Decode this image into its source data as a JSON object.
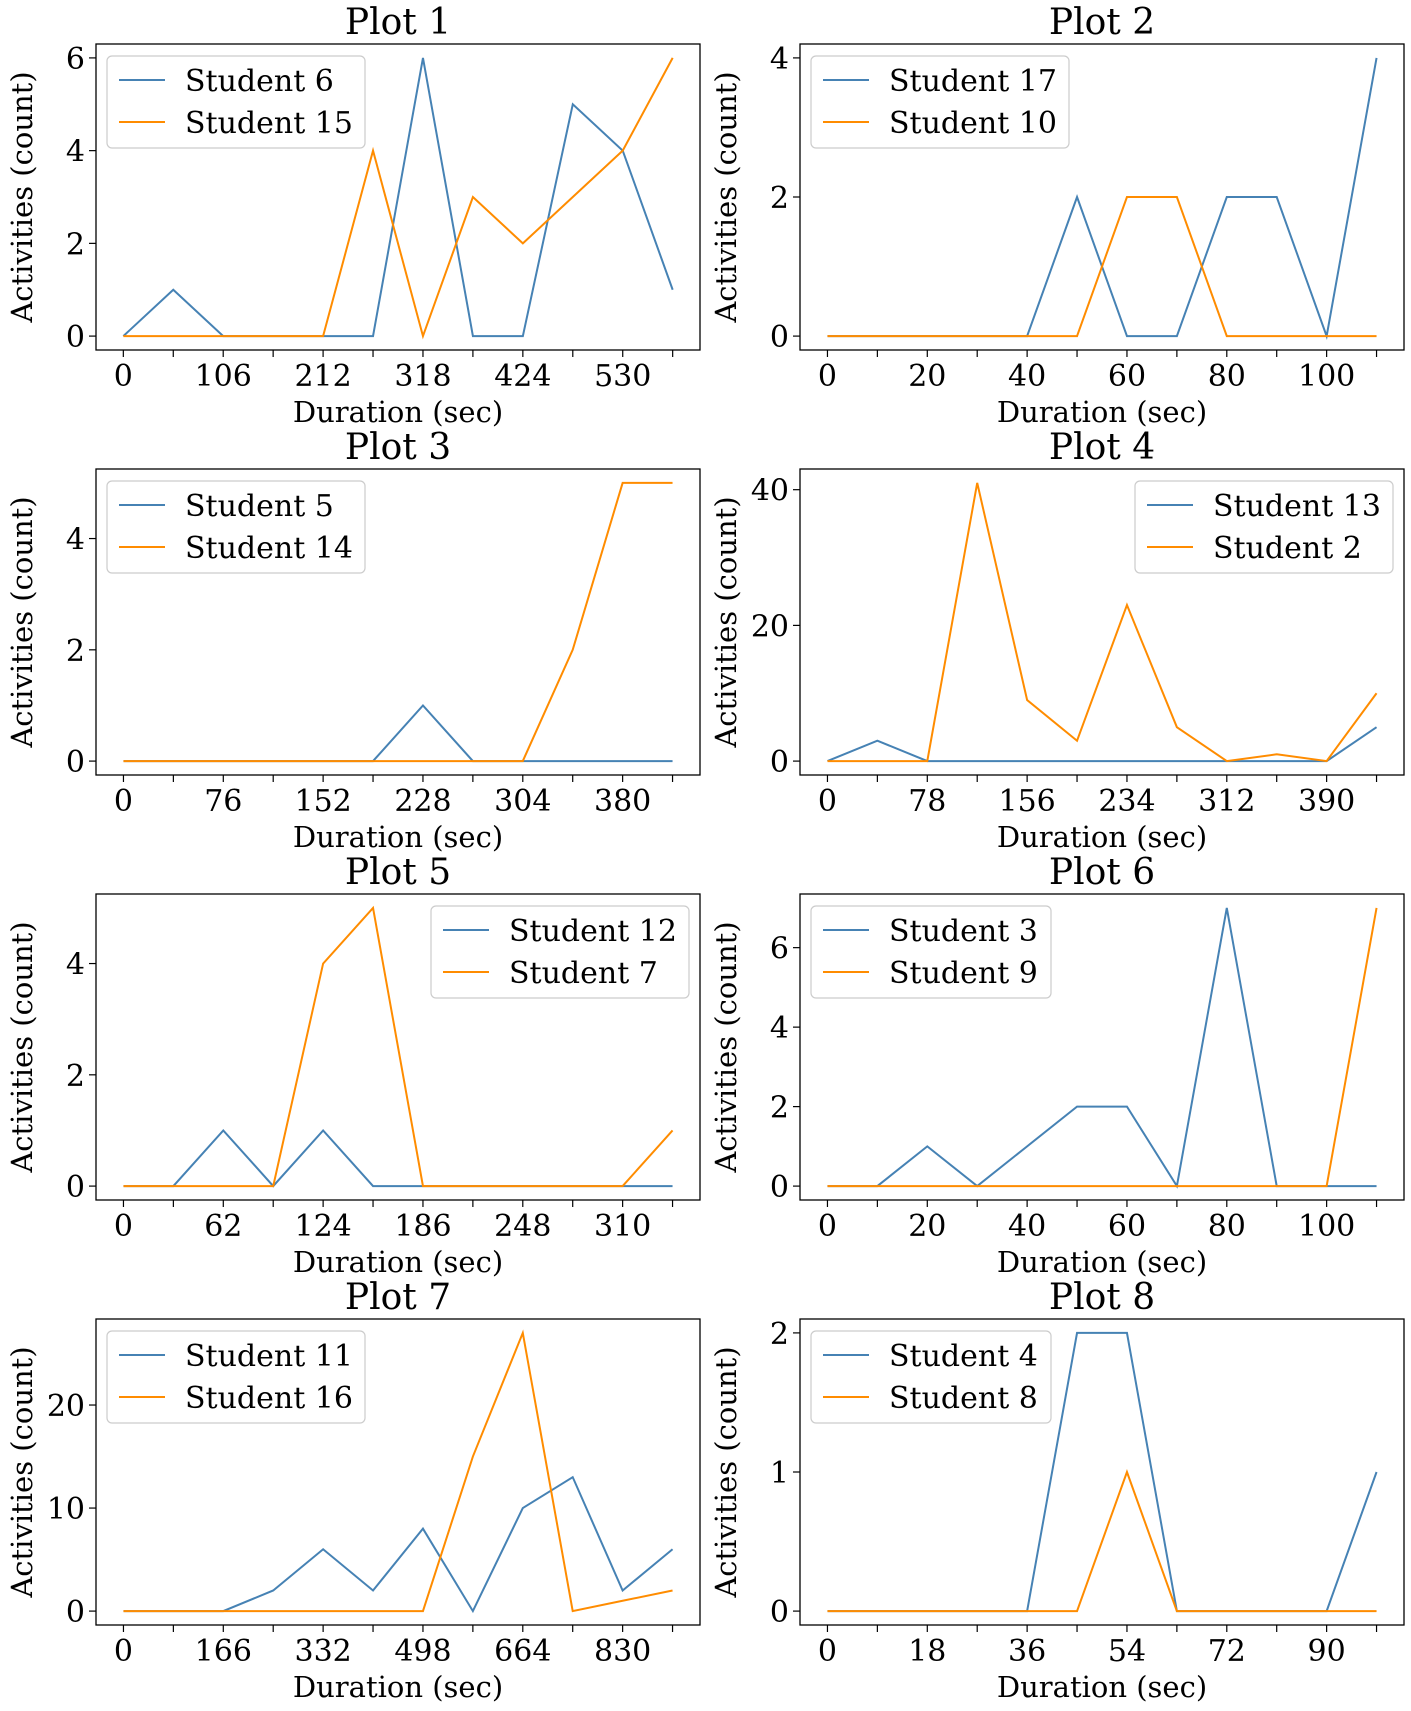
{
  "figure": {
    "colors": {
      "series_a": "#4682b4",
      "series_b": "#ff8c00",
      "axis": "#000000",
      "legend_border": "#cccccc"
    }
  },
  "chart_data": [
    {
      "type": "line",
      "title": "Plot 1",
      "xlabel": "Duration (sec)",
      "ylabel": "Activities (count)",
      "x": [
        0,
        53,
        106,
        159,
        212,
        265,
        318,
        371,
        424,
        477,
        530,
        583
      ],
      "xticks": [
        0,
        106,
        212,
        318,
        424,
        530
      ],
      "xminor": [
        53,
        159,
        265,
        371,
        477,
        583
      ],
      "yticks": [
        0,
        2,
        4,
        6
      ],
      "ylim": [
        -0.3,
        6.3
      ],
      "xlim": [
        -29,
        612
      ],
      "legend": "upper-left",
      "series": [
        {
          "name": "Student 6",
          "values": [
            0,
            1,
            0,
            0,
            0,
            0,
            6,
            0,
            0,
            5,
            4,
            1
          ]
        },
        {
          "name": "Student 15",
          "values": [
            0,
            0,
            0,
            0,
            0,
            4,
            0,
            3,
            2,
            3,
            4,
            6
          ]
        }
      ]
    },
    {
      "type": "line",
      "title": "Plot 2",
      "xlabel": "Duration (sec)",
      "ylabel": "Activities (count)",
      "x": [
        0,
        10,
        20,
        30,
        40,
        50,
        60,
        70,
        80,
        90,
        100,
        110
      ],
      "xticks": [
        0,
        20,
        40,
        60,
        80,
        100
      ],
      "xminor": [
        10,
        30,
        50,
        70,
        90,
        110
      ],
      "yticks": [
        0,
        2,
        4
      ],
      "ylim": [
        -0.2,
        4.2
      ],
      "xlim": [
        -5.5,
        115.5
      ],
      "legend": "upper-left",
      "series": [
        {
          "name": "Student 17",
          "values": [
            0,
            0,
            0,
            0,
            0,
            2,
            0,
            0,
            2,
            2,
            0,
            4
          ]
        },
        {
          "name": "Student 10",
          "values": [
            0,
            0,
            0,
            0,
            0,
            0,
            2,
            2,
            0,
            0,
            0,
            0
          ]
        }
      ]
    },
    {
      "type": "line",
      "title": "Plot 3",
      "xlabel": "Duration (sec)",
      "ylabel": "Activities (count)",
      "x": [
        0,
        38,
        76,
        114,
        152,
        190,
        228,
        266,
        304,
        342,
        380,
        418
      ],
      "xticks": [
        0,
        76,
        152,
        228,
        304,
        380
      ],
      "xminor": [
        38,
        114,
        190,
        266,
        342,
        418
      ],
      "yticks": [
        0,
        2,
        4
      ],
      "ylim": [
        -0.25,
        5.25
      ],
      "xlim": [
        -20.9,
        438.9
      ],
      "legend": "upper-left",
      "series": [
        {
          "name": "Student 5",
          "values": [
            0,
            0,
            0,
            0,
            0,
            0,
            1,
            0,
            0,
            0,
            0,
            0
          ]
        },
        {
          "name": "Student 14",
          "values": [
            0,
            0,
            0,
            0,
            0,
            0,
            0,
            0,
            0,
            2,
            5,
            5
          ]
        }
      ]
    },
    {
      "type": "line",
      "title": "Plot 4",
      "xlabel": "Duration (sec)",
      "ylabel": "Activities (count)",
      "x": [
        0,
        39,
        78,
        117,
        156,
        195,
        234,
        273,
        312,
        351,
        390,
        429
      ],
      "xticks": [
        0,
        78,
        156,
        234,
        312,
        390
      ],
      "xminor": [
        39,
        117,
        195,
        273,
        351,
        429
      ],
      "yticks": [
        0,
        20,
        40
      ],
      "ylim": [
        -2.05,
        43.05
      ],
      "xlim": [
        -21.45,
        450.45
      ],
      "legend": "upper-right",
      "series": [
        {
          "name": "Student 13",
          "values": [
            0,
            3,
            0,
            0,
            0,
            0,
            0,
            0,
            0,
            0,
            0,
            5
          ]
        },
        {
          "name": "Student 2",
          "values": [
            0,
            0,
            0,
            41,
            9,
            3,
            23,
            5,
            0,
            1,
            0,
            10
          ]
        }
      ]
    },
    {
      "type": "line",
      "title": "Plot 5",
      "xlabel": "Duration (sec)",
      "ylabel": "Activities (count)",
      "x": [
        0,
        31,
        62,
        93,
        124,
        155,
        186,
        217,
        248,
        279,
        310,
        341
      ],
      "xticks": [
        0,
        62,
        124,
        186,
        248,
        310
      ],
      "xminor": [
        31,
        93,
        155,
        217,
        279,
        341
      ],
      "yticks": [
        0,
        2,
        4
      ],
      "ylim": [
        -0.25,
        5.25
      ],
      "xlim": [
        -17.05,
        358.05
      ],
      "legend": "upper-right",
      "series": [
        {
          "name": "Student 12",
          "values": [
            0,
            0,
            1,
            0,
            1,
            0,
            0,
            0,
            0,
            0,
            0,
            0
          ]
        },
        {
          "name": "Student 7",
          "values": [
            0,
            0,
            0,
            0,
            4,
            5,
            0,
            0,
            0,
            0,
            0,
            1
          ]
        }
      ]
    },
    {
      "type": "line",
      "title": "Plot 6",
      "xlabel": "Duration (sec)",
      "ylabel": "Activities (count)",
      "x": [
        0,
        10,
        20,
        30,
        40,
        50,
        60,
        70,
        80,
        90,
        100,
        110
      ],
      "xticks": [
        0,
        20,
        40,
        60,
        80,
        100
      ],
      "xminor": [
        10,
        30,
        50,
        70,
        90,
        110
      ],
      "yticks": [
        0,
        2,
        4,
        6
      ],
      "ylim": [
        -0.35,
        7.35
      ],
      "xlim": [
        -5.5,
        115.5
      ],
      "legend": "upper-left",
      "series": [
        {
          "name": "Student 3",
          "values": [
            0,
            0,
            1,
            0,
            1,
            2,
            2,
            0,
            7,
            0,
            0,
            0
          ]
        },
        {
          "name": "Student 9",
          "values": [
            0,
            0,
            0,
            0,
            0,
            0,
            0,
            0,
            0,
            0,
            0,
            7
          ]
        }
      ]
    },
    {
      "type": "line",
      "title": "Plot 7",
      "xlabel": "Duration (sec)",
      "ylabel": "Activities (count)",
      "x": [
        0,
        83,
        166,
        249,
        332,
        415,
        498,
        581,
        664,
        747,
        830,
        913
      ],
      "xticks": [
        0,
        166,
        332,
        498,
        664,
        830
      ],
      "xminor": [
        83,
        249,
        415,
        581,
        747,
        913
      ],
      "yticks": [
        0,
        10,
        20
      ],
      "ylim": [
        -1.35,
        28.35
      ],
      "xlim": [
        -45.65,
        958.65
      ],
      "legend": "upper-left",
      "series": [
        {
          "name": "Student 11",
          "values": [
            0,
            0,
            0,
            2,
            6,
            2,
            8,
            0,
            10,
            13,
            2,
            6
          ]
        },
        {
          "name": "Student 16",
          "values": [
            0,
            0,
            0,
            0,
            0,
            0,
            0,
            15,
            27,
            0,
            1,
            2
          ]
        }
      ]
    },
    {
      "type": "line",
      "title": "Plot 8",
      "xlabel": "Duration (sec)",
      "ylabel": "Activities (count)",
      "x": [
        0,
        9,
        18,
        27,
        36,
        45,
        54,
        63,
        72,
        81,
        90,
        99
      ],
      "xticks": [
        0,
        18,
        36,
        54,
        72,
        90
      ],
      "xminor": [
        9,
        27,
        45,
        63,
        81,
        99
      ],
      "yticks": [
        0,
        1,
        2
      ],
      "ylim": [
        -0.1,
        2.1
      ],
      "xlim": [
        -4.95,
        103.95
      ],
      "legend": "upper-left",
      "series": [
        {
          "name": "Student 4",
          "values": [
            0,
            0,
            0,
            0,
            0,
            2,
            2,
            0,
            0,
            0,
            0,
            1
          ]
        },
        {
          "name": "Student 8",
          "values": [
            0,
            0,
            0,
            0,
            0,
            0,
            1,
            0,
            0,
            0,
            0,
            0
          ]
        }
      ]
    }
  ]
}
